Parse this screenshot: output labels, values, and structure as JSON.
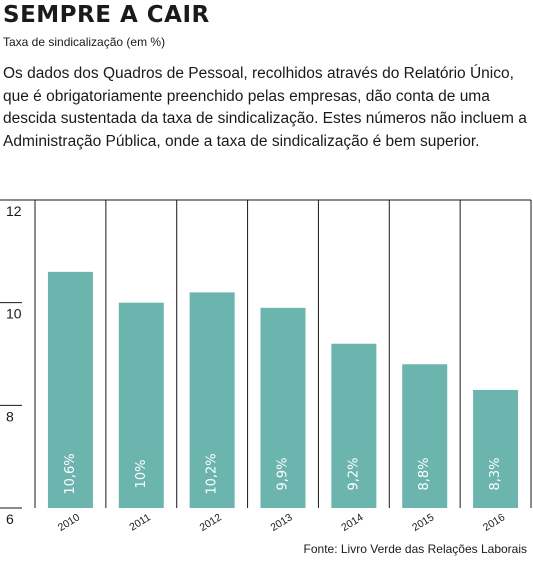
{
  "header": {
    "title": "SEMPRE A CAIR",
    "subtitle": "Taxa de sindicalização (em %)",
    "description": "Os dados dos Quadros de Pessoal, recolhidos através do Relatório Único, que é obrigatoriamente preenchido pelas empresas, dão conta de uma descida sustentada da taxa de sindicalização. Estes números não incluem a Administração Pública, onde a taxa de sindicalização é bem superior."
  },
  "footer": {
    "source": "Fonte: Livro  Verde das Relações Laborais"
  },
  "colors": {
    "bar": "#6cb5ae",
    "grid": "#1a1a1a",
    "label": "#ffffff"
  },
  "chart_data": {
    "type": "bar",
    "title": "SEMPRE A CAIR",
    "subtitle": "Taxa de sindicalização (em %)",
    "xlabel": "",
    "ylabel": "",
    "categories": [
      "2010",
      "2011",
      "2012",
      "2013",
      "2014",
      "2015",
      "2016"
    ],
    "values": [
      10.6,
      10,
      10.2,
      9.9,
      9.2,
      8.8,
      8.3
    ],
    "data_labels": [
      "10,6%",
      "10%",
      "10,2%",
      "9,9%",
      "9,2%",
      "8,8%",
      "8,3%"
    ],
    "ylim": [
      6,
      12
    ],
    "yticks": [
      6,
      8,
      10,
      12
    ],
    "grid": "vertical separators",
    "legend": "none"
  }
}
